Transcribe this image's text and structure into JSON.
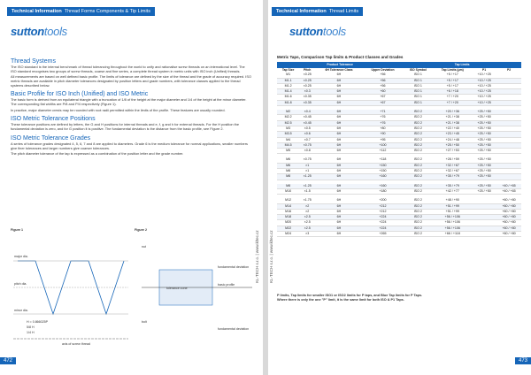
{
  "left": {
    "header": {
      "section": "Technical Information",
      "topic": "Thread Forms Components & Tip Limits"
    },
    "logo": {
      "bold": "sutton",
      "light": "tools"
    },
    "sections": [
      {
        "heading": "Thread Systems",
        "paragraphs": [
          "The ISO standard is the internal benchmark of thread tolerancing throughout the world to unify and rationalise screw threads on an international level. The ISO standard recognises two groups of screw threads, coarse and fine series, a complete thread system in metric units with ISO inch (Unified) threads.",
          "All measurements are based on well defined basic profile. The limits of tolerance are defined by the size of the thread and the grade of accuracy required. ISO metric threads are available in pitch diameter tolerances designated by position letters and grade numbers, with tolerance classes applied to the thread systems described below."
        ]
      },
      {
        "heading": "Basic Profile for ISO Inch (Unified) and ISO Metric",
        "paragraphs": [
          "The basic form is derived from an equilateral triangle with a truncation of 1/8 of the height at the major diameter and 1/4 of the height at the minor diameter. The corresponding flat widths are P/8 and P/4 respectively (Figure 1).",
          "In practice, major diameter crests may be rounded with root radii permitted within the limits of the profile. These features are usually rounded."
        ]
      },
      {
        "heading": "ISO Metric Tolerance Positions",
        "paragraphs": [
          "These tolerance positions are defined by letters, the G and H positions for internal threads and e, f, g and h for external threads. For the H position the fundamental deviation is zero, and for G position it is positive. The fundamental deviation is the distance from the basic profile, see Figure 2."
        ]
      },
      {
        "heading": "ISO Metric Tolerance Grades",
        "paragraphs": [
          "A series of tolerance grades designated 4, 5, 6, 7 and 8 are applied to diameters. Grade 6 is the medium tolerance for normal applications, smaller numbers give finer tolerances and larger numbers give coarser tolerances.",
          "The pitch diameter tolerance of the tap is expressed as a combination of the position letter and the grade number."
        ]
      }
    ],
    "figures": [
      {
        "caption": "Figure 1",
        "labels": [
          "major dia.",
          "pitch dia.",
          "minor dia.",
          "H = 0.866025P",
          "5/8 H",
          "1/4 H",
          "axis of screw thread"
        ]
      },
      {
        "caption": "Figure 2",
        "labels": [
          "nut",
          "bolt",
          "fundamental deviation",
          "basic profile",
          "tolerance zone",
          "fundamental deviation"
        ]
      }
    ],
    "page_number": "472"
  },
  "right": {
    "header": {
      "section": "Technical Information",
      "topic": "Thread Limits"
    },
    "logo": {
      "bold": "sutton",
      "light": "tools"
    },
    "table_title": "Metric Taps, Comparison Tap limits & Product Classes and Grades",
    "group_headers": [
      "Product Tolerance",
      "Tap Limits"
    ],
    "columns": [
      "Tap Size",
      "Pitch",
      "6H Tolerance Class",
      "Upper Deviation",
      "ISO Symbol",
      "Tap Limits (μm)",
      "P1",
      "P2"
    ],
    "groups": [
      [
        [
          "M1",
          "×0.25",
          "6H",
          "+56",
          "ISO 1",
          "+5 / +17",
          "+10 / +25",
          ""
        ],
        [
          "M1.1",
          "×0.25",
          "6H",
          "+56",
          "ISO 1",
          "+5 / +17",
          "+10 / +25",
          ""
        ],
        [
          "M1.2",
          "×0.25",
          "6H",
          "+56",
          "ISO 1",
          "+5 / +17",
          "+10 / +25",
          ""
        ],
        [
          "M1.4",
          "×0.3",
          "6H",
          "+60",
          "ISO 1",
          "+6 / +18",
          "+10 / +25",
          ""
        ],
        [
          "M1.6",
          "×0.35",
          "6H",
          "+67",
          "ISO 1",
          "+7 / +20",
          "+10 / +25",
          ""
        ],
        [
          "M1.8",
          "×0.35",
          "6H",
          "+67",
          "ISO 1",
          "+7 / +20",
          "+10 / +25",
          ""
        ]
      ],
      [
        [
          "M2",
          "×0.4",
          "6H",
          "+71",
          "ISO 2",
          "+20 / +36",
          "+25 / +50",
          ""
        ],
        [
          "M2.2",
          "×0.45",
          "6H",
          "+76",
          "ISO 2",
          "+21 / +38",
          "+25 / +50",
          ""
        ],
        [
          "M2.5",
          "×0.45",
          "6H",
          "+76",
          "ISO 2",
          "+21 / +38",
          "+25 / +50",
          ""
        ],
        [
          "M3",
          "×0.5",
          "6H",
          "+80",
          "ISO 2",
          "+22 / +40",
          "+25 / +50",
          ""
        ],
        [
          "M3.5",
          "×0.6",
          "6H",
          "+90",
          "ISO 2",
          "+23 / +45",
          "+25 / +50",
          ""
        ],
        [
          "M4",
          "×0.7",
          "6H",
          "+95",
          "ISO 2",
          "+24 / +48",
          "+25 / +50",
          ""
        ],
        [
          "M4.5",
          "×0.75",
          "6H",
          "+100",
          "ISO 2",
          "+25 / +50",
          "+25 / +50",
          ""
        ],
        [
          "M5",
          "×0.8",
          "6H",
          "+112",
          "ISO 2",
          "+27 / +53",
          "+25 / +50",
          ""
        ]
      ],
      [
        [
          "M6",
          "×0.75",
          "6H",
          "+118",
          "ISO 2",
          "+28 / +59",
          "+25 / +50",
          ""
        ],
        [
          "M6",
          "×1",
          "6H",
          "+150",
          "ISO 2",
          "+32 / +67",
          "+25 / +50",
          ""
        ],
        [
          "M8",
          "×1",
          "6H",
          "+150",
          "ISO 2",
          "+32 / +67",
          "+25 / +50",
          ""
        ],
        [
          "M8",
          "×1.25",
          "6H",
          "+160",
          "ISO 2",
          "+35 / +79",
          "+25 / +50",
          ""
        ]
      ],
      [
        [
          "M8",
          "×1.25",
          "6H",
          "+160",
          "ISO 2",
          "+35 / +79",
          "+25 / +50",
          "+40 / +65"
        ],
        [
          "M10",
          "×1.5",
          "6H",
          "+180",
          "ISO 2",
          "+42 / +77",
          "+25 / +50",
          "+40 / +65"
        ]
      ],
      [
        [
          "M12",
          "×1.75",
          "6H",
          "+200",
          "ISO 2",
          "+48 / +90",
          "",
          "+60 / +80"
        ],
        [
          "M14",
          "×2",
          "6H",
          "+212",
          "ISO 2",
          "+51 / +99",
          "",
          "+60 / +80"
        ],
        [
          "M16",
          "×2",
          "6H",
          "+212",
          "ISO 2",
          "+51 / +99",
          "",
          "+60 / +80"
        ],
        [
          "M18",
          "×2.5",
          "6H",
          "+224",
          "ISO 2",
          "+56 / +106",
          "",
          "+60 / +80"
        ],
        [
          "M20",
          "×2.5",
          "6H",
          "+224",
          "ISO 2",
          "+56 / +106",
          "",
          "+60 / +80"
        ],
        [
          "M22",
          "×2.5",
          "6H",
          "+224",
          "ISO 2",
          "+56 / +106",
          "",
          "+60 / +80"
        ],
        [
          "M24",
          "×3",
          "6H",
          "+265",
          "ISO 2",
          "+66 / +118",
          "",
          "+60 / +80"
        ]
      ]
    ],
    "notes": [
      "P limits, Tap limits for smaller ISO1 or ISO2 limits for P taps, and Blue Tap limits for P Taps.",
      "Where there is only the one \"P\" limit, it is the same limit for both ISO & P1 Taps."
    ],
    "page_number": "473"
  },
  "side_text": "KL-TECH s.r.o. | www.kltec.cz"
}
